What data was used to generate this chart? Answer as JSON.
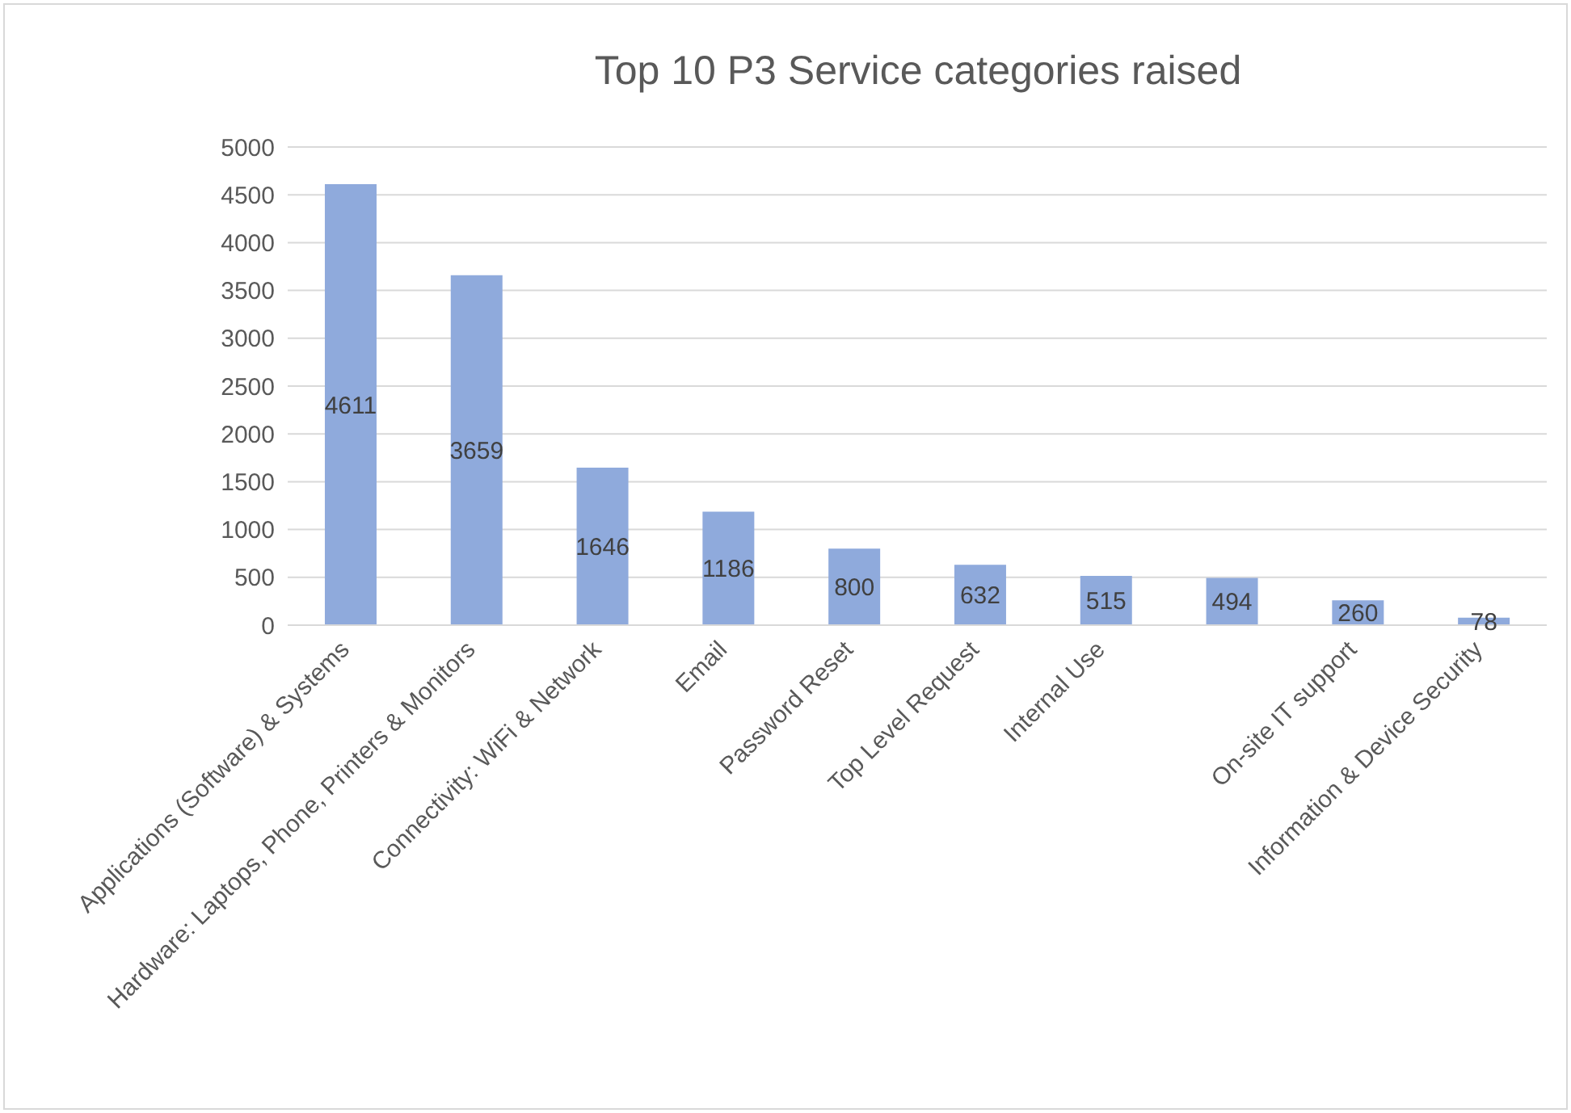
{
  "chart_data": {
    "type": "bar",
    "title": "Top 10 P3 Service categories raised",
    "categories": [
      "Applications (Software) & Systems",
      "Hardware: Laptops, Phone, Printers & Monitors",
      "Connectivity: WiFi & Network",
      "Email",
      "Password Reset",
      "Top Level Request",
      "Internal Use",
      null,
      "On-site IT support",
      "Information & Device Security"
    ],
    "values": [
      4611,
      3659,
      1646,
      1186,
      800,
      632,
      515,
      494,
      260,
      78
    ],
    "color": "#8faadc",
    "ylim": [
      0,
      5000
    ],
    "yticks": [
      0,
      500,
      1000,
      1500,
      2000,
      2500,
      3000,
      3500,
      4000,
      4500,
      5000
    ],
    "grid": "y",
    "data_labels": true
  }
}
